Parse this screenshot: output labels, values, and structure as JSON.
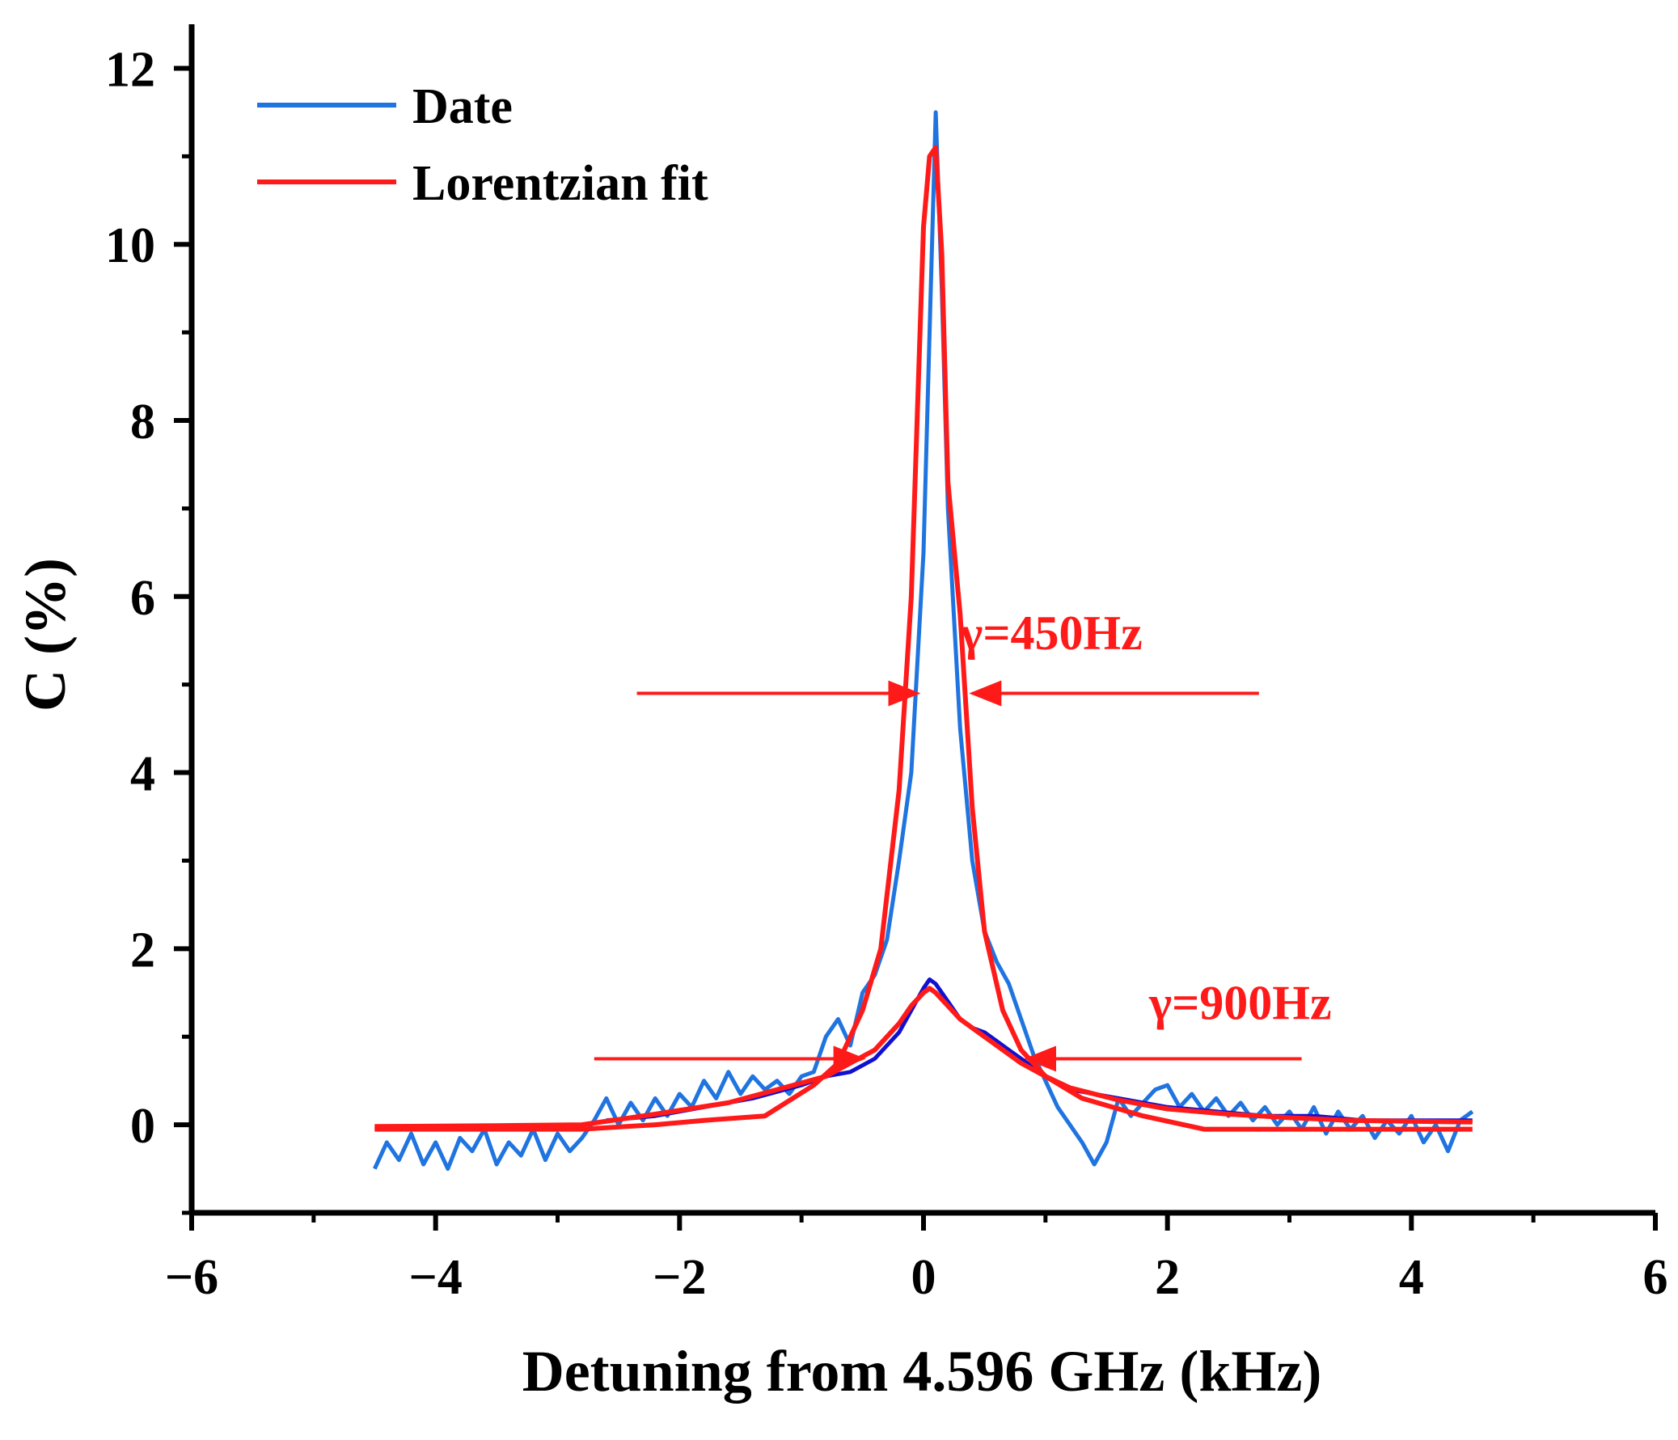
{
  "chart_data": {
    "type": "line",
    "title": "",
    "xlabel": "Detuning from 4.596 GHz (kHz)",
    "ylabel": "C (%)",
    "xlim": [
      -6,
      6
    ],
    "ylim": [
      -1,
      12.5
    ],
    "x_ticks": [
      -6,
      -4,
      -2,
      0,
      2,
      4,
      6
    ],
    "x_tick_labels": [
      "−6",
      "−4",
      "−2",
      "0",
      "2",
      "4",
      "6"
    ],
    "y_ticks": [
      0,
      2,
      4,
      6,
      8,
      10,
      12
    ],
    "y_tick_labels": [
      "0",
      "2",
      "4",
      "6",
      "8",
      "10",
      "12"
    ],
    "legend": {
      "position": "top-left",
      "entries": [
        {
          "label": "Date",
          "color": "#1f74e0"
        },
        {
          "label": "Lorentzian fit",
          "color": "#ff1a1a"
        }
      ]
    },
    "colors": {
      "data": "#1f74e0",
      "data_dark": "#1010d0",
      "fit": "#ff1a1a",
      "axis": "#000000"
    },
    "series": [
      {
        "name": "Date (narrow)",
        "legend": "Date",
        "color": "#1f74e0",
        "x": [
          -4.5,
          -4.4,
          -4.3,
          -4.2,
          -4.1,
          -4.0,
          -3.9,
          -3.8,
          -3.7,
          -3.6,
          -3.5,
          -3.4,
          -3.3,
          -3.2,
          -3.1,
          -3.0,
          -2.9,
          -2.8,
          -2.7,
          -2.6,
          -2.5,
          -2.4,
          -2.3,
          -2.2,
          -2.1,
          -2.0,
          -1.9,
          -1.8,
          -1.7,
          -1.6,
          -1.5,
          -1.4,
          -1.3,
          -1.2,
          -1.1,
          -1.0,
          -0.9,
          -0.8,
          -0.7,
          -0.6,
          -0.5,
          -0.4,
          -0.3,
          -0.2,
          -0.1,
          0.0,
          0.05,
          0.1,
          0.15,
          0.2,
          0.3,
          0.4,
          0.5,
          0.6,
          0.7,
          0.8,
          0.9,
          1.0,
          1.1,
          1.2,
          1.3,
          1.4,
          1.5,
          1.6,
          1.7,
          1.8,
          1.9,
          2.0,
          2.1,
          2.2,
          2.3,
          2.4,
          2.5,
          2.6,
          2.7,
          2.8,
          2.9,
          3.0,
          3.1,
          3.2,
          3.3,
          3.4,
          3.5,
          3.6,
          3.7,
          3.8,
          3.9,
          4.0,
          4.1,
          4.2,
          4.3,
          4.4,
          4.5
        ],
        "y": [
          -0.5,
          -0.2,
          -0.4,
          -0.1,
          -0.45,
          -0.2,
          -0.5,
          -0.15,
          -0.3,
          -0.05,
          -0.45,
          -0.2,
          -0.35,
          -0.05,
          -0.4,
          -0.1,
          -0.3,
          -0.15,
          0.05,
          0.3,
          0.0,
          0.25,
          0.05,
          0.3,
          0.1,
          0.35,
          0.2,
          0.5,
          0.3,
          0.6,
          0.35,
          0.55,
          0.4,
          0.5,
          0.35,
          0.55,
          0.6,
          1.0,
          1.2,
          0.9,
          1.5,
          1.7,
          2.1,
          3.0,
          4.0,
          6.5,
          9.0,
          11.5,
          9.5,
          7.0,
          4.5,
          3.0,
          2.2,
          1.85,
          1.6,
          1.2,
          0.8,
          0.5,
          0.2,
          0.0,
          -0.2,
          -0.45,
          -0.2,
          0.3,
          0.1,
          0.25,
          0.4,
          0.45,
          0.2,
          0.35,
          0.15,
          0.3,
          0.1,
          0.25,
          0.05,
          0.2,
          0.0,
          0.15,
          -0.05,
          0.2,
          -0.1,
          0.15,
          -0.05,
          0.1,
          -0.15,
          0.05,
          -0.1,
          0.1,
          -0.2,
          0.0,
          -0.3,
          0.05,
          0.15
        ]
      },
      {
        "name": "Date (broad)",
        "legend": "Date",
        "color": "#1010d0",
        "x": [
          -2.6,
          -2.2,
          -1.8,
          -1.4,
          -1.0,
          -0.8,
          -0.6,
          -0.4,
          -0.2,
          0.0,
          0.05,
          0.1,
          0.2,
          0.3,
          0.4,
          0.5,
          0.6,
          0.7,
          0.8,
          0.9,
          1.0,
          1.2,
          1.6,
          2.0,
          2.4,
          2.8,
          3.2,
          3.6,
          4.0,
          4.5
        ],
        "y": [
          0.05,
          0.1,
          0.2,
          0.3,
          0.45,
          0.55,
          0.6,
          0.75,
          1.05,
          1.55,
          1.65,
          1.6,
          1.4,
          1.2,
          1.1,
          1.05,
          0.95,
          0.85,
          0.75,
          0.65,
          0.55,
          0.4,
          0.3,
          0.2,
          0.15,
          0.1,
          0.1,
          0.05,
          0.05,
          0.05
        ]
      },
      {
        "name": "Lorentzian fit (narrow)",
        "legend": "Lorentzian fit",
        "color": "#ff1a1a",
        "x": [
          -4.5,
          -3.5,
          -2.8,
          -2.2,
          -1.8,
          -1.3,
          -0.9,
          -0.7,
          -0.5,
          -0.35,
          -0.2,
          -0.1,
          0.0,
          0.05,
          0.1,
          0.15,
          0.2,
          0.3,
          0.4,
          0.5,
          0.65,
          0.8,
          1.0,
          1.3,
          1.8,
          2.3,
          3.0,
          3.6,
          4.5
        ],
        "y": [
          -0.05,
          -0.05,
          -0.05,
          -0.0,
          0.05,
          0.1,
          0.45,
          0.7,
          1.3,
          2.0,
          3.8,
          6.0,
          10.2,
          11.0,
          11.1,
          9.9,
          7.3,
          5.8,
          3.6,
          2.2,
          1.3,
          0.85,
          0.55,
          0.3,
          0.1,
          -0.05,
          -0.05,
          -0.05,
          -0.05
        ]
      },
      {
        "name": "Lorentzian fit (broad)",
        "legend": "Lorentzian fit",
        "color": "#ff1a1a",
        "x": [
          -4.5,
          -3.5,
          -2.8,
          -2.2,
          -1.6,
          -1.2,
          -0.8,
          -0.6,
          -0.4,
          -0.2,
          -0.1,
          0.0,
          0.05,
          0.1,
          0.2,
          0.3,
          0.4,
          0.6,
          0.8,
          1.0,
          1.2,
          1.6,
          2.0,
          2.5,
          3.0,
          3.5,
          4.5
        ],
        "y": [
          -0.02,
          -0.01,
          0.0,
          0.12,
          0.25,
          0.4,
          0.55,
          0.7,
          0.85,
          1.15,
          1.35,
          1.5,
          1.55,
          1.5,
          1.35,
          1.2,
          1.1,
          0.9,
          0.7,
          0.55,
          0.42,
          0.28,
          0.18,
          0.12,
          0.08,
          0.05,
          0.03
        ]
      }
    ],
    "annotations": [
      {
        "text": "γ=450Hz",
        "color": "#ff1a1a",
        "x_text": 0.3,
        "y_text": 5.4,
        "arrows": [
          {
            "from_x": -2.35,
            "to_x": -0.05,
            "y": 4.9
          },
          {
            "from_x": 2.75,
            "to_x": 0.4,
            "y": 4.9
          }
        ]
      },
      {
        "text": "γ=900Hz",
        "color": "#ff1a1a",
        "x_text": 1.85,
        "y_text": 1.2,
        "arrows": [
          {
            "from_x": -2.7,
            "to_x": -0.5,
            "y": 0.75
          },
          {
            "from_x": 3.1,
            "to_x": 0.85,
            "y": 0.75
          }
        ]
      }
    ]
  }
}
